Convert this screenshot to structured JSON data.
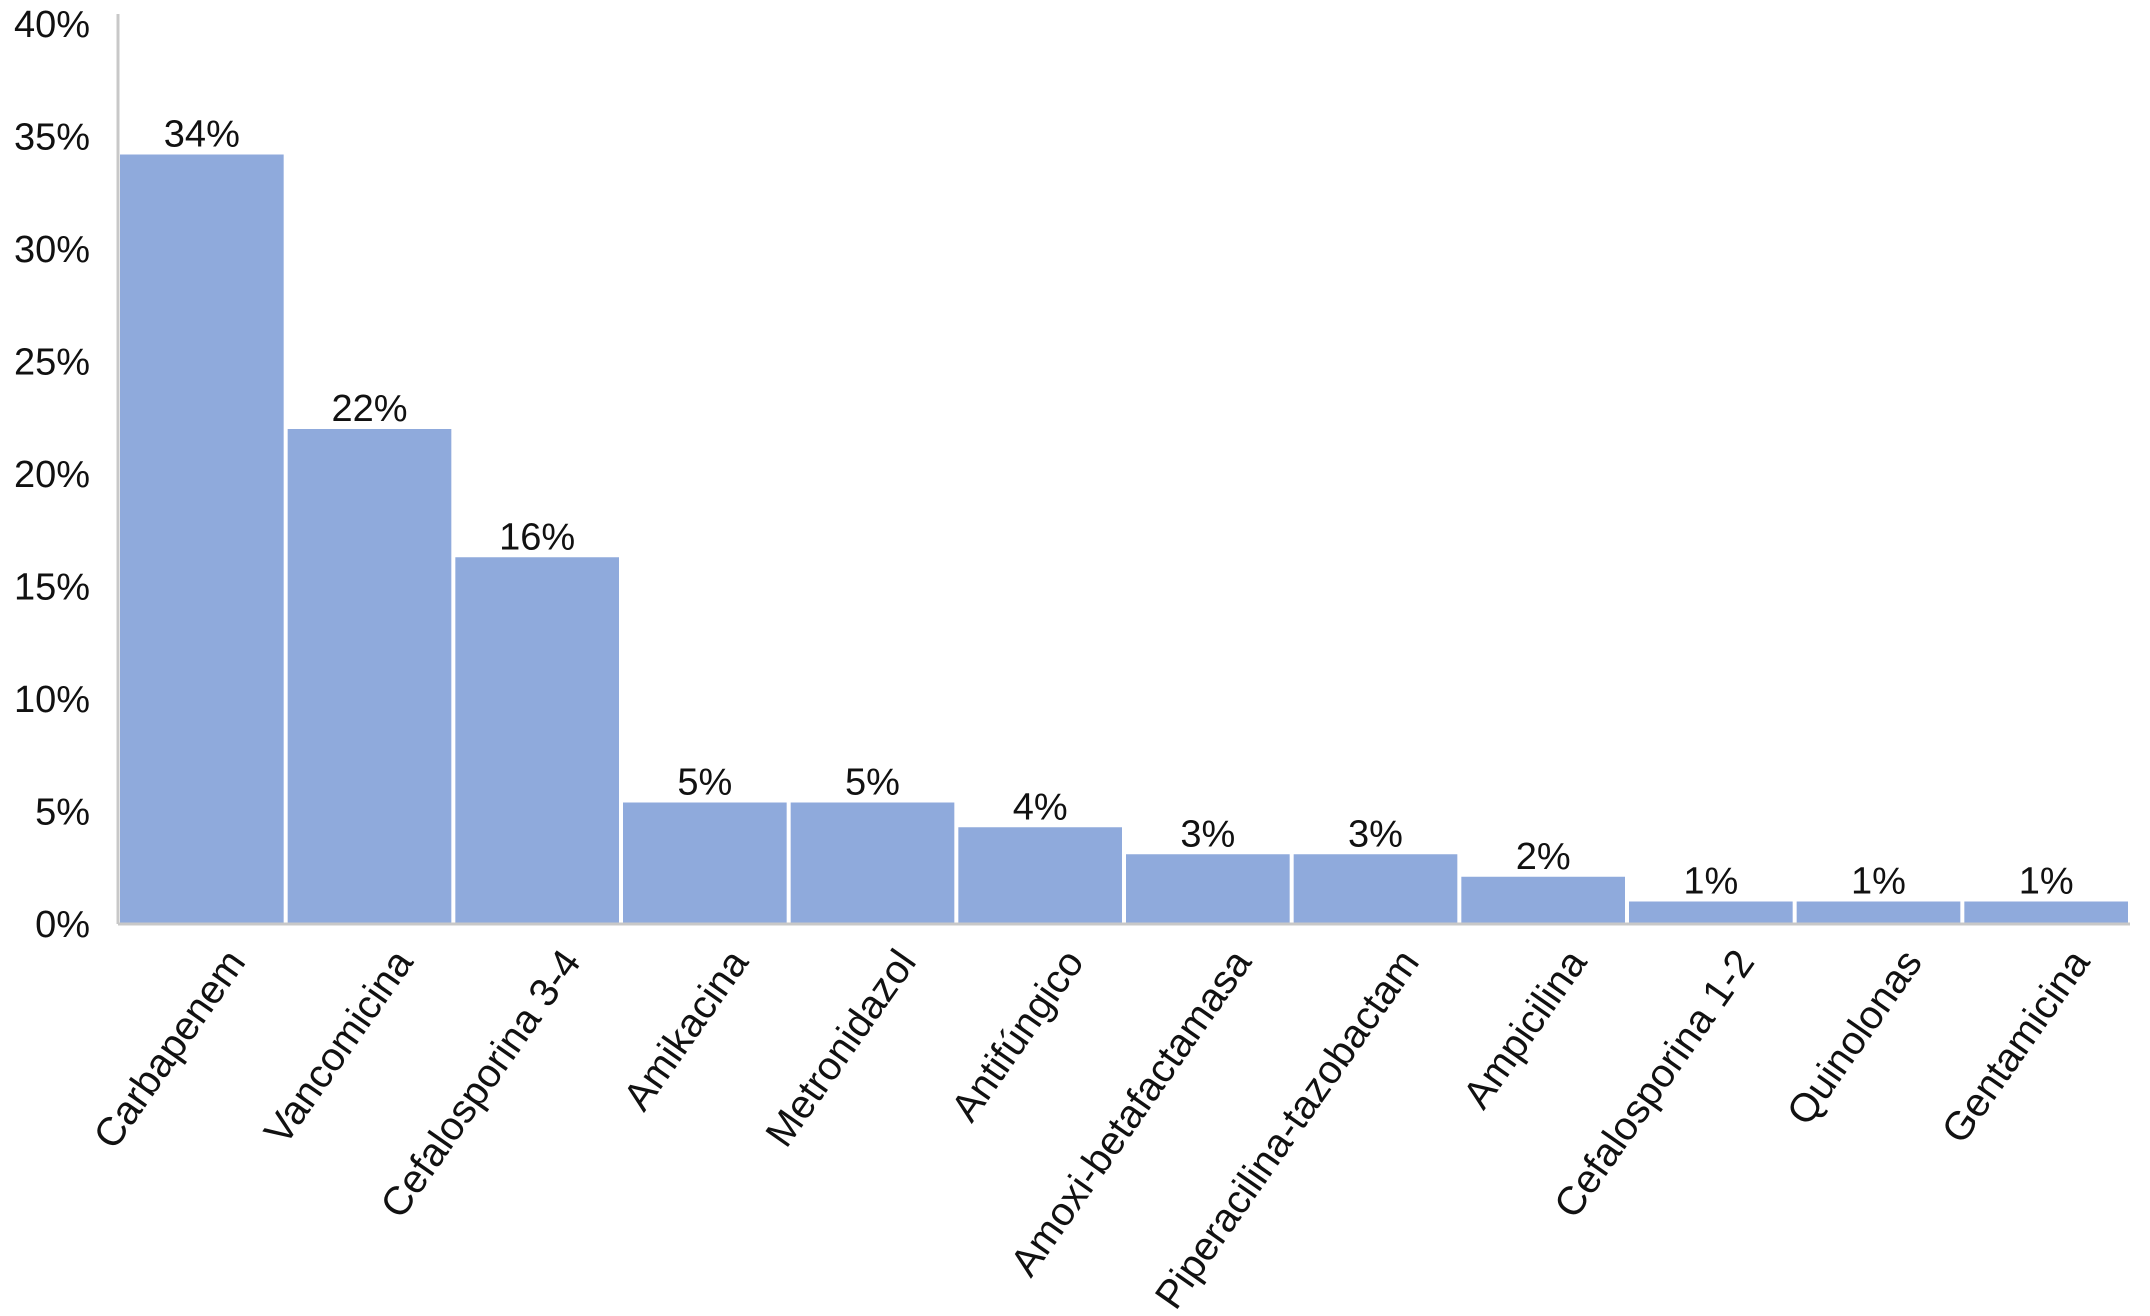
{
  "chart_data": {
    "type": "bar",
    "title": "",
    "xlabel": "",
    "ylabel": "",
    "ylim": [
      0,
      40
    ],
    "yticks": [
      "0%",
      "5%",
      "10%",
      "15%",
      "20%",
      "25%",
      "30%",
      "35%",
      "40%"
    ],
    "grid": false,
    "legend": "none",
    "bar_color": "#8faadc",
    "categories": [
      "Carbapenem",
      "Vancomicina",
      "Cefalosporina 3-4",
      "Amikacina",
      "Metronidazol",
      "Antifúngico",
      "Amoxi-betafactamasa",
      "Piperacilina-tazobactam",
      "Ampicilina",
      "Cefalosporina 1-2",
      "Quinolonas",
      "Gentamicina"
    ],
    "values": [
      34.2,
      22.0,
      16.3,
      5.4,
      5.4,
      4.3,
      3.1,
      3.1,
      2.1,
      1.0,
      1.0,
      1.0
    ],
    "data_labels": [
      "34%",
      "22%",
      "16%",
      "5%",
      "5%",
      "4%",
      "3%",
      "3%",
      "2%",
      "1%",
      "1%",
      "1%"
    ]
  }
}
